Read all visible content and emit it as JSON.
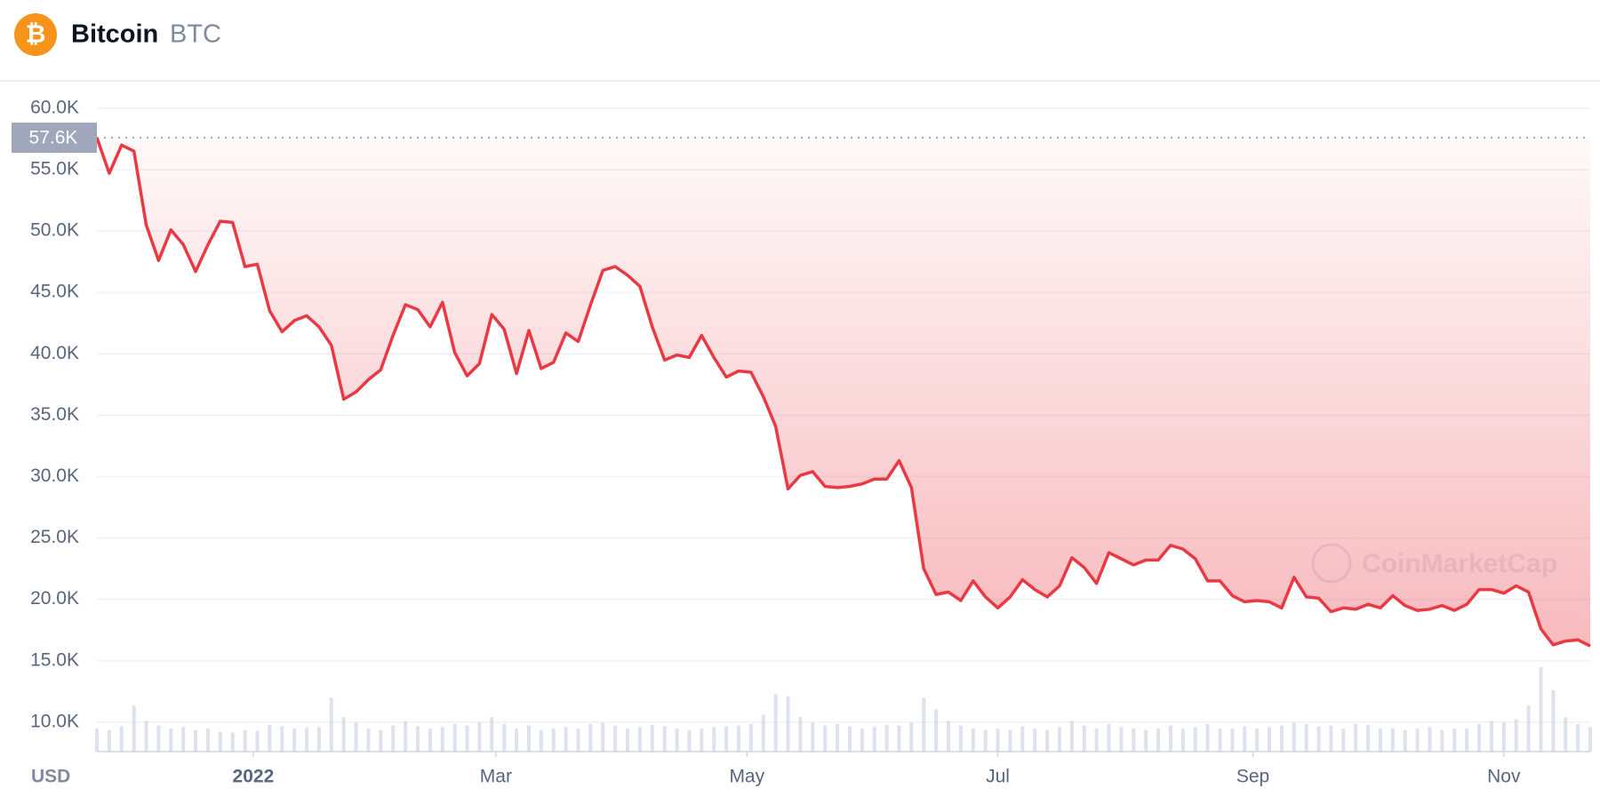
{
  "header": {
    "name": "Bitcoin",
    "symbol": "BTC",
    "icon": "₿"
  },
  "chart_data": {
    "type": "line",
    "values": [
      57600,
      54700,
      57000,
      56500,
      50500,
      47600,
      50100,
      48900,
      46700,
      48900,
      50800,
      50700,
      47100,
      47300,
      43500,
      41800,
      42700,
      43100,
      42200,
      40700,
      36300,
      36900,
      37900,
      38700,
      41500,
      44000,
      43600,
      42200,
      44200,
      40100,
      38200,
      39200,
      43200,
      42000,
      38400,
      41900,
      38800,
      39300,
      41700,
      41000,
      44000,
      46800,
      47100,
      46400,
      45500,
      42200,
      39500,
      39900,
      39700,
      41500,
      39700,
      38100,
      38600,
      38500,
      36500,
      34100,
      29000,
      30100,
      30400,
      29200,
      29100,
      29200,
      29400,
      29800,
      29800,
      31300,
      29100,
      22500,
      20400,
      20600,
      19900,
      21500,
      20200,
      19300,
      20200,
      21600,
      20800,
      20200,
      21100,
      23400,
      22600,
      21300,
      23800,
      23300,
      22800,
      23200,
      23200,
      24400,
      24100,
      23300,
      21500,
      21500,
      20300,
      19800,
      19900,
      19800,
      19300,
      21800,
      20200,
      20100,
      19000,
      19300,
      19200,
      19600,
      19300,
      20300,
      19500,
      19100,
      19200,
      19500,
      19100,
      19600,
      20800,
      20800,
      20500,
      21100,
      20600,
      17600,
      16300,
      16600,
      16700,
      16200
    ],
    "volume": [
      30,
      28,
      33,
      60,
      40,
      34,
      30,
      32,
      28,
      30,
      26,
      25,
      28,
      27,
      35,
      33,
      30,
      31,
      32,
      70,
      45,
      38,
      30,
      28,
      34,
      40,
      33,
      30,
      32,
      36,
      34,
      38,
      45,
      36,
      30,
      34,
      28,
      30,
      32,
      30,
      36,
      38,
      34,
      30,
      32,
      35,
      33,
      30,
      28,
      30,
      32,
      33,
      34,
      36,
      48,
      75,
      72,
      45,
      38,
      34,
      36,
      33,
      30,
      32,
      35,
      34,
      38,
      70,
      55,
      40,
      34,
      30,
      28,
      30,
      28,
      33,
      30,
      28,
      32,
      40,
      34,
      30,
      36,
      32,
      30,
      28,
      30,
      34,
      30,
      32,
      36,
      30,
      30,
      33,
      30,
      32,
      34,
      38,
      36,
      33,
      34,
      30,
      36,
      35,
      30,
      30,
      28,
      30,
      32,
      28,
      30,
      30,
      36,
      40,
      38,
      42,
      60,
      110,
      80,
      45,
      36,
      32
    ],
    "color_up": "#16c784",
    "color_down": "#ea3943",
    "reference_line": {
      "value": 57600,
      "label": "57.6K"
    },
    "xlim": [
      0,
      121
    ],
    "xticks": [
      {
        "value": 12.67,
        "label": "2022"
      },
      {
        "value": 32.33,
        "label": "Mar"
      },
      {
        "value": 52.67,
        "label": "May"
      },
      {
        "value": 73,
        "label": "Jul"
      },
      {
        "value": 93.67,
        "label": "Sep"
      },
      {
        "value": 114,
        "label": "Nov"
      }
    ],
    "ylim": [
      7600,
      61800
    ],
    "yticks": [
      {
        "value": 10000,
        "label": "10.0K"
      },
      {
        "value": 15000,
        "label": "15.0K"
      },
      {
        "value": 20000,
        "label": "20.0K"
      },
      {
        "value": 25000,
        "label": "25.0K"
      },
      {
        "value": 30000,
        "label": "30.0K"
      },
      {
        "value": 35000,
        "label": "35.0K"
      },
      {
        "value": 40000,
        "label": "40.0K"
      },
      {
        "value": 45000,
        "label": "45.0K"
      },
      {
        "value": 50000,
        "label": "50.0K"
      },
      {
        "value": 55000,
        "label": "55.0K"
      },
      {
        "value": 60000,
        "label": "60.0K"
      }
    ],
    "currency": "USD",
    "watermark": "CoinMarketCap",
    "grid": true
  }
}
